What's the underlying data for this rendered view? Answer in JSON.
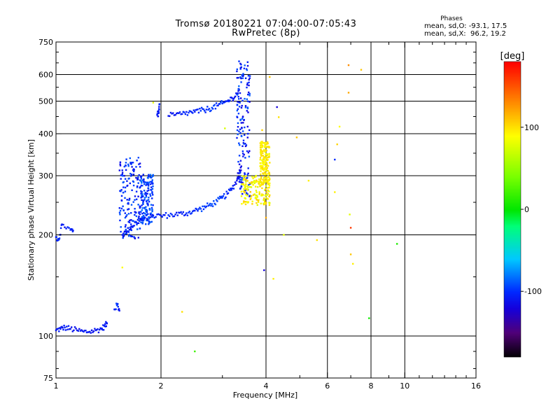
{
  "header": {
    "title_line1": "Tromsø 20180221 07:04:00-07:05:43",
    "title_line2": "RwPretec (8p)"
  },
  "stats": {
    "title": "Phases",
    "line_o": "mean, sd,O: -93.1, 17.5",
    "line_x": "mean, sd,X:  96.2, 19.2"
  },
  "colorbar": {
    "label": "[deg]",
    "min": -180,
    "max": 180,
    "ticks": [
      100,
      0,
      -100
    ],
    "tick_labels": [
      "100",
      "0",
      "-100"
    ]
  },
  "chart_data": {
    "type": "scatter",
    "title": "Tromsø 20180221 07:04:00-07:05:43",
    "subtitle": "RwPretec (8p)",
    "xlabel": "Frequency [MHz]",
    "ylabel": "Stationary phase Virtual Height [km]",
    "x_scale": "log",
    "y_scale": "log",
    "xlim": [
      1,
      16
    ],
    "ylim": [
      75,
      750
    ],
    "x_ticks": [
      1,
      2,
      4,
      6,
      8,
      10,
      16
    ],
    "x_tick_labels": [
      "1",
      "2",
      "4",
      "6",
      "8",
      "10",
      "16"
    ],
    "x_minor_ticks": [
      3,
      5,
      7,
      9,
      11,
      12,
      13,
      14,
      15
    ],
    "y_ticks": [
      75,
      100,
      200,
      300,
      400,
      500,
      600,
      750
    ],
    "y_tick_labels": [
      "75",
      "100",
      "200",
      "300",
      "400",
      "500",
      "600",
      "750"
    ],
    "y_minor_ticks": [
      80,
      90,
      150,
      250,
      350,
      450,
      550,
      650,
      700
    ],
    "x_grid": [
      2,
      4,
      6,
      8,
      10
    ],
    "y_grid": [
      100,
      200,
      300,
      400,
      500,
      600
    ],
    "color_scale": "phase, -180 to 180 deg",
    "series": [
      {
        "type": "trace",
        "x": [
          1.0,
          1.03,
          1.06,
          1.1,
          1.15,
          1.2,
          1.25,
          1.3,
          1.35,
          1.38,
          1.4
        ],
        "y": [
          104,
          105,
          106,
          105,
          104,
          103,
          103,
          104,
          105,
          107,
          109
        ],
        "phase": [
          -110,
          -108,
          -105,
          -108,
          -110,
          -104,
          -106,
          -110,
          -108,
          -105,
          -110
        ]
      },
      {
        "type": "trace",
        "x": [
          1.0,
          1.02,
          1.04,
          1.1,
          1.12
        ],
        "y": [
          197,
          194,
          215,
          207,
          206
        ],
        "phase": [
          -105,
          -100,
          -110,
          -100,
          -105
        ]
      },
      {
        "type": "trace",
        "x": [
          1.47,
          1.5,
          1.52
        ],
        "y": [
          120,
          124,
          119
        ],
        "phase": [
          -105,
          -95,
          -110
        ]
      },
      {
        "type": "trace",
        "x": [
          1.55,
          1.6,
          1.65,
          1.7,
          1.75,
          1.8,
          1.9,
          2.0,
          2.1,
          2.2,
          2.3,
          2.4,
          2.5,
          2.6,
          2.7,
          2.8,
          2.9,
          3.0,
          3.1,
          3.2,
          3.3,
          3.35,
          3.4
        ],
        "y": [
          200,
          205,
          212,
          218,
          222,
          225,
          228,
          228,
          229,
          230,
          231,
          233,
          236,
          239,
          243,
          247,
          252,
          258,
          265,
          275,
          290,
          305,
          320
        ],
        "phase": [
          -110,
          -105,
          -108,
          -102,
          -110,
          -106,
          -104,
          -108,
          -100,
          -106,
          -104,
          -98,
          -102,
          -95,
          -100,
          -90,
          -95,
          -96,
          -100,
          -104,
          -110,
          -112,
          -115
        ]
      },
      {
        "type": "spread",
        "x": [
          1.52,
          1.75
        ],
        "y": [
          195,
          340
        ],
        "phase": [
          -115,
          -85
        ]
      },
      {
        "type": "spread",
        "x": [
          1.75,
          1.9
        ],
        "y": [
          215,
          305
        ],
        "phase": [
          -110,
          -80
        ]
      },
      {
        "type": "trace",
        "x": [
          1.95,
          1.97,
          1.98
        ],
        "y": [
          455,
          460,
          490
        ],
        "phase": [
          -105,
          -110,
          -100
        ]
      },
      {
        "type": "trace",
        "x": [
          2.1,
          2.2,
          2.3,
          2.4,
          2.5,
          2.6,
          2.7,
          2.8,
          2.9,
          3.0,
          3.1,
          3.2,
          3.3,
          3.35
        ],
        "y": [
          452,
          455,
          458,
          462,
          465,
          468,
          472,
          478,
          485,
          492,
          500,
          510,
          525,
          540
        ],
        "phase": [
          -108,
          -106,
          -104,
          -100,
          -106,
          -96,
          -102,
          -92,
          -100,
          -98,
          -104,
          -106,
          -108,
          -110
        ]
      },
      {
        "type": "spread",
        "x": [
          3.3,
          3.6
        ],
        "y": [
          260,
          660
        ],
        "phase": [
          -120,
          -85
        ]
      },
      {
        "type": "spread",
        "x": [
          3.4,
          4.1
        ],
        "y": [
          245,
          300
        ],
        "phase": [
          75,
          110
        ]
      },
      {
        "type": "spread",
        "x": [
          3.85,
          4.1
        ],
        "y": [
          280,
          380
        ],
        "phase": [
          85,
          105
        ]
      },
      {
        "type": "scatter",
        "x": [
          1.55,
          1.9,
          2.3,
          2.5,
          3.05,
          3.5,
          3.9,
          3.95,
          4.0,
          4.1,
          4.2,
          4.3,
          4.35,
          4.5,
          4.9,
          5.3,
          5.6,
          6.3,
          6.3,
          6.4,
          6.5,
          6.9,
          6.9,
          6.95,
          7.0,
          7.0,
          7.1,
          7.5,
          7.9,
          9.5
        ],
        "y": [
          160,
          495,
          118,
          90,
          415,
          585,
          410,
          157,
          225,
          590,
          148,
          480,
          448,
          200,
          390,
          290,
          193,
          268,
          335,
          372,
          420,
          640,
          530,
          230,
          210,
          175,
          164,
          620,
          113,
          188
        ],
        "phase": [
          90,
          80,
          100,
          20,
          75,
          -105,
          105,
          -120,
          120,
          110,
          95,
          -120,
          100,
          80,
          110,
          95,
          100,
          95,
          -100,
          105,
          90,
          130,
          120,
          80,
          160,
          110,
          95,
          110,
          5,
          10
        ]
      }
    ]
  }
}
